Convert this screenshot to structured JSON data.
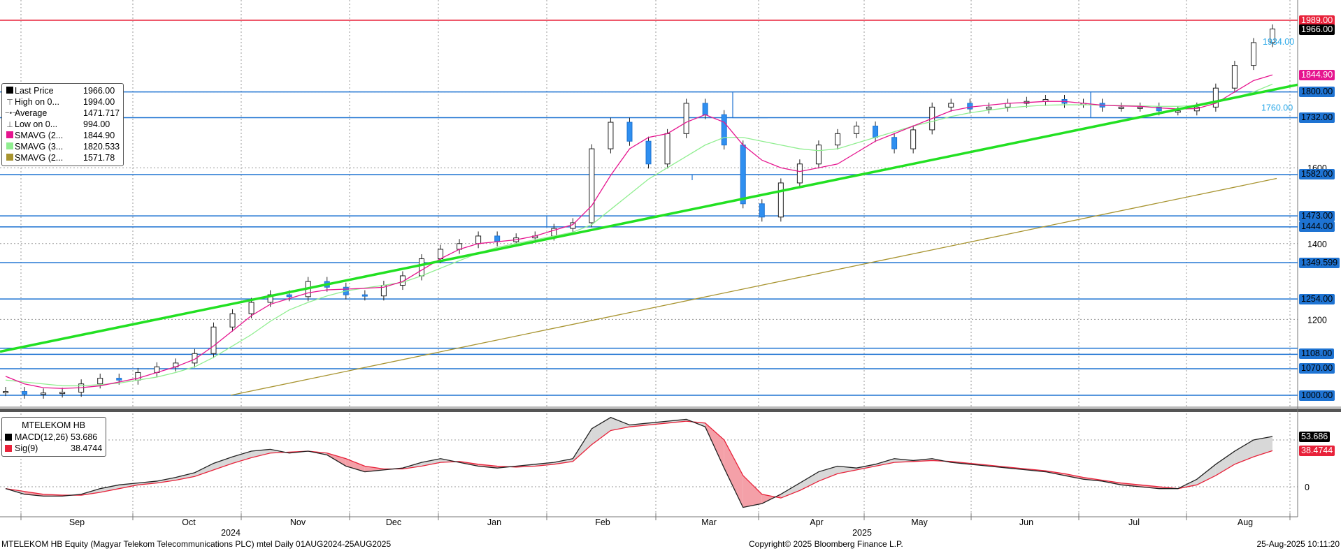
{
  "chart_data": [
    {
      "type": "candlestick",
      "title": "",
      "ticker": "MTELEKOM HB Equity",
      "y_axis_ticks": [
        1200,
        1400,
        1600
      ],
      "ylim": [
        992,
        2014
      ],
      "x_months": [
        "Sep",
        "Oct",
        "Nov",
        "Dec",
        "Jan",
        "Feb",
        "Mar",
        "Apr",
        "May",
        "Jun",
        "Jul",
        "Aug"
      ],
      "x_years": [
        "2024",
        "2025"
      ],
      "grid": true,
      "legend_position": "top-left",
      "legend": [
        {
          "label": "Last Price",
          "value": "1966.00",
          "color": "#000000",
          "glyph": "box"
        },
        {
          "label": "High on 0...",
          "value": "1994.00",
          "color": "#555555",
          "glyph": "high"
        },
        {
          "label": "Average",
          "value": "1471.717",
          "color": "#555555",
          "glyph": "avg"
        },
        {
          "label": "Low on 0...",
          "value": "994.00",
          "color": "#555555",
          "glyph": "low"
        },
        {
          "label": "SMAVG (2...",
          "value": "1844.90",
          "color": "#e6158f",
          "glyph": "box"
        },
        {
          "label": "SMAVG (3...",
          "value": "1820.533",
          "color": "#90ee90",
          "glyph": "box"
        },
        {
          "label": "SMAVG (2...",
          "value": "1571.78",
          "color": "#a89430",
          "glyph": "box"
        }
      ],
      "horizontal_levels": [
        1800,
        1732,
        1582,
        1473,
        1444,
        1349.599,
        1254,
        1124,
        1108,
        1070,
        1000,
        1989
      ],
      "price_tags": [
        {
          "text": "1989.00",
          "value": 1989,
          "bg": "#e8223a",
          "fg": "#ffffff"
        },
        {
          "text": "1966.00",
          "value": 1966,
          "bg": "#000000",
          "fg": "#ffffff"
        },
        {
          "text": "1844.90",
          "value": 1844.9,
          "bg": "#e6158f",
          "fg": "#ffffff"
        },
        {
          "text": "1800.00",
          "value": 1800,
          "bg": "#1e73d2",
          "fg": "#000000"
        },
        {
          "text": "1732.00",
          "value": 1732,
          "bg": "#1e73d2",
          "fg": "#000000"
        },
        {
          "text": "1582.00",
          "value": 1582,
          "bg": "#1e73d2",
          "fg": "#000000"
        },
        {
          "text": "1473.00",
          "value": 1473,
          "bg": "#1e73d2",
          "fg": "#000000"
        },
        {
          "text": "1444.00",
          "value": 1444,
          "bg": "#1e73d2",
          "fg": "#000000"
        },
        {
          "text": "1349.599",
          "value": 1349.6,
          "bg": "#1e73d2",
          "fg": "#000000"
        },
        {
          "text": "1254.00",
          "value": 1254,
          "bg": "#1e73d2",
          "fg": "#000000"
        },
        {
          "text": "1108.00",
          "value": 1108,
          "bg": "#1e73d2",
          "fg": "#000000"
        },
        {
          "text": "1070.00",
          "value": 1070,
          "bg": "#1e73d2",
          "fg": "#000000"
        },
        {
          "text": "1000.00",
          "value": 1000,
          "bg": "#1e73d2",
          "fg": "#000000"
        }
      ],
      "annotations": [
        {
          "text": "1934.00",
          "value": 1934,
          "color": "#2aa8e8"
        },
        {
          "text": "1760.00",
          "value": 1760,
          "color": "#2aa8e8"
        }
      ],
      "trendline": {
        "start": {
          "x": "Aug 2024",
          "y": 1115
        },
        "end": {
          "x": "Aug 2025",
          "y": 1819
        },
        "color": "#22e022"
      },
      "weekly_close": [
        1010,
        1003,
        1006,
        1008,
        1030,
        1045,
        1040,
        1060,
        1075,
        1085,
        1110,
        1180,
        1215,
        1245,
        1265,
        1260,
        1300,
        1285,
        1265,
        1262,
        1290,
        1315,
        1360,
        1385,
        1400,
        1420,
        1405,
        1415,
        1420,
        1440,
        1455,
        1650,
        1720,
        1670,
        1610,
        1690,
        1770,
        1740,
        1660,
        1505,
        1470,
        1560,
        1610,
        1660,
        1690,
        1710,
        1680,
        1650,
        1700,
        1760,
        1770,
        1755,
        1760,
        1770,
        1775,
        1780,
        1770,
        1770,
        1760,
        1760,
        1760,
        1750,
        1750,
        1760,
        1810,
        1870,
        1930,
        1966
      ],
      "sma_fast": [
        1050,
        1030,
        1020,
        1018,
        1020,
        1025,
        1035,
        1045,
        1060,
        1075,
        1095,
        1130,
        1170,
        1210,
        1240,
        1255,
        1270,
        1278,
        1280,
        1282,
        1285,
        1300,
        1330,
        1360,
        1385,
        1400,
        1405,
        1410,
        1420,
        1435,
        1450,
        1500,
        1580,
        1650,
        1680,
        1690,
        1720,
        1740,
        1720,
        1660,
        1620,
        1600,
        1590,
        1600,
        1610,
        1640,
        1670,
        1690,
        1710,
        1730,
        1750,
        1760,
        1765,
        1770,
        1772,
        1775,
        1775,
        1770,
        1765,
        1763,
        1762,
        1758,
        1755,
        1756,
        1770,
        1800,
        1830,
        1844.9
      ],
      "sma_slow": [
        1040,
        1035,
        1030,
        1025,
        1025,
        1028,
        1032,
        1040,
        1048,
        1060,
        1075,
        1100,
        1130,
        1160,
        1195,
        1225,
        1245,
        1262,
        1275,
        1283,
        1290,
        1298,
        1315,
        1335,
        1355,
        1375,
        1390,
        1400,
        1410,
        1420,
        1430,
        1450,
        1490,
        1530,
        1570,
        1600,
        1630,
        1660,
        1680,
        1680,
        1670,
        1660,
        1650,
        1645,
        1650,
        1665,
        1680,
        1695,
        1710,
        1722,
        1735,
        1745,
        1752,
        1758,
        1762,
        1765,
        1766,
        1766,
        1765,
        1764,
        1763,
        1762,
        1762,
        1764,
        1772,
        1785,
        1800,
        1820.533
      ],
      "sma_long": [
        1
      ]
    },
    {
      "type": "line",
      "title": "MTELEKOM HB",
      "legend_position": "top-left",
      "y_axis_ticks": [
        0
      ],
      "ylim": [
        -45,
        85
      ],
      "legend": [
        {
          "label": "MACD(12,26)",
          "value": "53.686",
          "color": "#000000"
        },
        {
          "label": "Sig(9)",
          "value": "38.4744",
          "color": "#e8223a"
        }
      ],
      "price_tags": [
        {
          "text": "53.686",
          "value": 53.686,
          "bg": "#000000",
          "fg": "#ffffff"
        },
        {
          "text": "38.4744",
          "value": 38.4744,
          "bg": "#e8223a",
          "fg": "#ffffff"
        }
      ],
      "series": [
        {
          "name": "MACD(12,26)",
          "values": [
            -2,
            -8,
            -10,
            -10,
            -8,
            -2,
            2,
            4,
            6,
            10,
            15,
            25,
            32,
            38,
            40,
            36,
            38,
            34,
            22,
            16,
            18,
            20,
            26,
            30,
            26,
            22,
            20,
            22,
            24,
            26,
            30,
            62,
            74,
            66,
            68,
            70,
            72,
            64,
            20,
            -22,
            -18,
            -8,
            4,
            16,
            22,
            20,
            24,
            30,
            28,
            30,
            26,
            24,
            22,
            20,
            18,
            16,
            12,
            8,
            6,
            2,
            0,
            -2,
            -2,
            8,
            24,
            38,
            50,
            53.686
          ]
        },
        {
          "name": "Sig(9)",
          "values": [
            -2,
            -5,
            -8,
            -9,
            -9,
            -6,
            -2,
            2,
            4,
            7,
            11,
            18,
            25,
            31,
            36,
            37,
            38,
            36,
            30,
            22,
            19,
            19,
            22,
            26,
            27,
            24,
            22,
            21,
            22,
            24,
            27,
            45,
            60,
            64,
            66,
            68,
            70,
            68,
            50,
            12,
            -8,
            -12,
            -4,
            6,
            14,
            18,
            22,
            26,
            27,
            28,
            27,
            25,
            23,
            21,
            19,
            17,
            14,
            10,
            7,
            4,
            2,
            0,
            -2,
            2,
            12,
            24,
            32,
            38.4744
          ]
        }
      ]
    }
  ],
  "footer": {
    "left": "MTELEKOM HB Equity (Magyar Telekom Telecommunications PLC) mtel  Daily 01AUG2024-25AUG2025",
    "center": "Copyright© 2025 Bloomberg Finance L.P.",
    "right": "25-Aug-2025 10:11:20"
  }
}
